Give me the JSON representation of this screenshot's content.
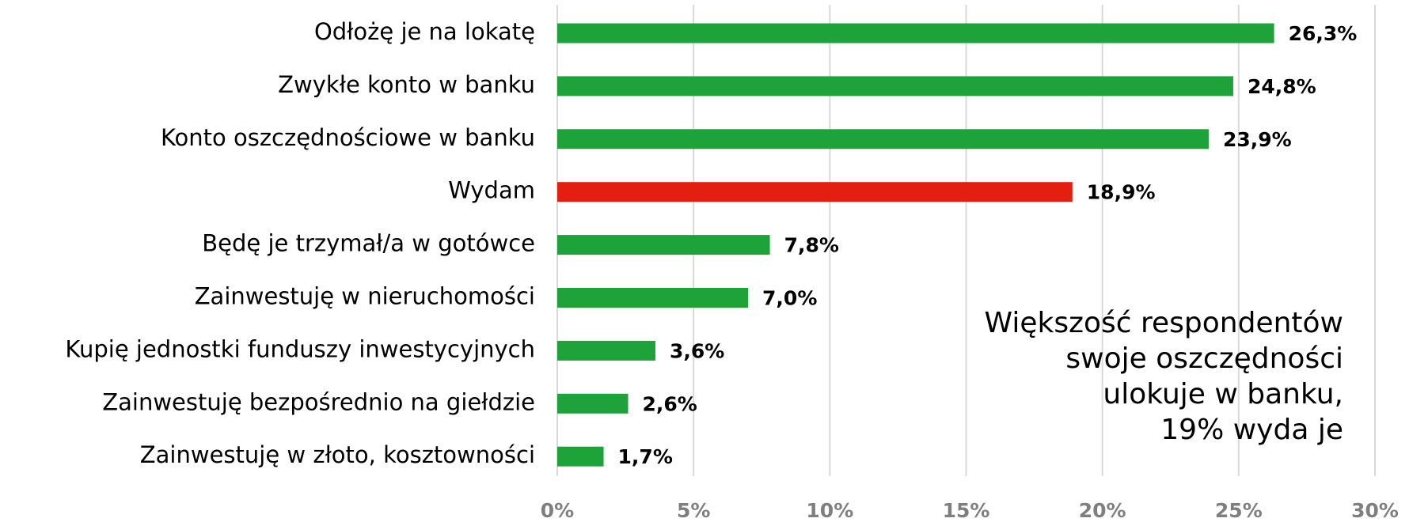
{
  "chart_data": {
    "type": "barh",
    "categories": [
      "Odłożę je na lokatę",
      "Zwykłe konto w banku",
      "Konto oszczędnościowe w banku",
      "Wydam",
      "Będę je trzymał/a w gotówce",
      "Zainwestuję w nieruchomości",
      "Kupię jednostki funduszy inwestycyjnych",
      "Zainwestuję bezpośrednio na giełdzie",
      "Zainwestuję w złoto, kosztowności"
    ],
    "values": [
      26.3,
      24.8,
      23.9,
      18.9,
      7.8,
      7.0,
      3.6,
      2.6,
      1.7
    ],
    "value_labels": [
      "26,3%",
      "24,8%",
      "23,9%",
      "18,9%",
      "7,8%",
      "7,0%",
      "3,6%",
      "2,6%",
      "1,7%"
    ],
    "colors": [
      "#1ea33a",
      "#1ea33a",
      "#1ea33a",
      "#e3200f",
      "#1ea33a",
      "#1ea33a",
      "#1ea33a",
      "#1ea33a",
      "#1ea33a"
    ],
    "xlim": [
      0,
      30
    ],
    "xticks": [
      {
        "value": 0,
        "label": "0%"
      },
      {
        "value": 5,
        "label": "5%"
      },
      {
        "value": 10,
        "label": "10%"
      },
      {
        "value": 15,
        "label": "15%"
      },
      {
        "value": 20,
        "label": "20%"
      },
      {
        "value": 25,
        "label": "25%"
      },
      {
        "value": 30,
        "label": "30%"
      }
    ],
    "grid": true,
    "annotation": [
      "Większość respondentów",
      "swoje oszczędności",
      "ulokuje w banku,",
      "19% wyda je"
    ]
  }
}
